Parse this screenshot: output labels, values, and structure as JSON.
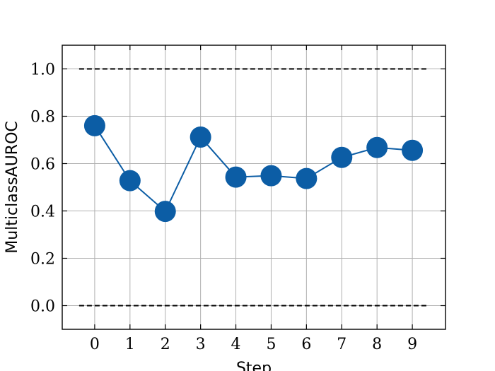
{
  "chart_data": {
    "type": "line",
    "x_label": "Step",
    "y_label": "MulticlassAUROC",
    "x": [
      0,
      1,
      2,
      3,
      4,
      5,
      6,
      7,
      8,
      9
    ],
    "series": [
      {
        "name": "MulticlassAUROC",
        "color": "#0c5da5",
        "values": [
          0.76,
          0.528,
          0.398,
          0.712,
          0.543,
          0.549,
          0.537,
          0.626,
          0.668,
          0.656
        ]
      }
    ],
    "hlines": [
      0,
      1
    ],
    "xlim": [
      -0.92,
      9.94
    ],
    "ylim": [
      -0.1,
      1.1
    ],
    "xticks": [
      0,
      1,
      2,
      3,
      4,
      5,
      6,
      7,
      8,
      9
    ],
    "yticks": [
      {
        "value": 0,
        "label": "0.0"
      },
      {
        "value": 0.2,
        "label": "0.2"
      },
      {
        "value": 0.4,
        "label": "0.4"
      },
      {
        "value": 0.6,
        "label": "0.6"
      },
      {
        "value": 0.8,
        "label": "0.8"
      },
      {
        "value": 1,
        "label": "1.0"
      }
    ],
    "grid": true
  }
}
